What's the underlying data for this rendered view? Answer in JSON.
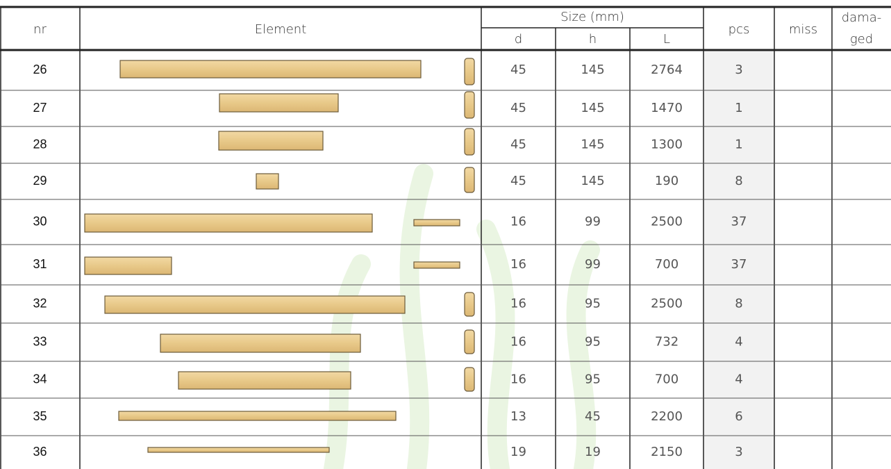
{
  "header": {
    "nr": "nr",
    "element": "Element",
    "size": "Size (mm)",
    "d": "d",
    "h": "h",
    "L": "L",
    "pcs": "pcs",
    "miss": "miss",
    "damaged": [
      "dama-",
      "ged"
    ]
  },
  "rows": [
    {
      "nr": "26",
      "d": "45",
      "h": "145",
      "L": "2764",
      "pcs": "3"
    },
    {
      "nr": "27",
      "d": "45",
      "h": "145",
      "L": "1470",
      "pcs": "1"
    },
    {
      "nr": "28",
      "d": "45",
      "h": "145",
      "L": "1300",
      "pcs": "1"
    },
    {
      "nr": "29",
      "d": "45",
      "h": "145",
      "L": "190",
      "pcs": "8"
    },
    {
      "nr": "30",
      "d": "16",
      "h": "99",
      "L": "2500",
      "pcs": "37"
    },
    {
      "nr": "31",
      "d": "16",
      "h": "99",
      "L": "700",
      "pcs": "37"
    },
    {
      "nr": "32",
      "d": "16",
      "h": "95",
      "L": "2500",
      "pcs": "8"
    },
    {
      "nr": "33",
      "d": "16",
      "h": "95",
      "L": "732",
      "pcs": "4"
    },
    {
      "nr": "34",
      "d": "16",
      "h": "95",
      "L": "700",
      "pcs": "4"
    },
    {
      "nr": "35",
      "d": "13",
      "h": "45",
      "L": "2200",
      "pcs": "6"
    },
    {
      "nr": "36",
      "d": "19",
      "h": "19",
      "L": "2150",
      "pcs": "3"
    }
  ]
}
